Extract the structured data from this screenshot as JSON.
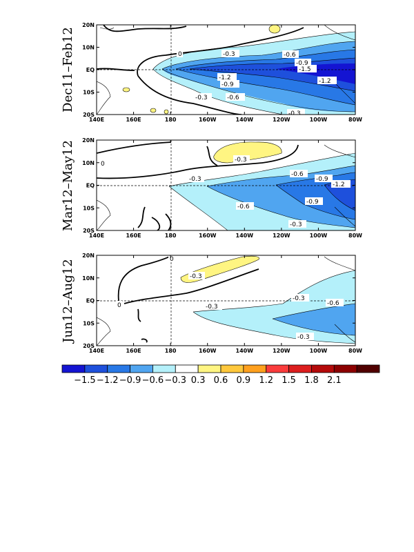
{
  "figure": {
    "x_ticks": [
      "140E",
      "160E",
      "180",
      "160W",
      "140W",
      "120W",
      "100W",
      "80W"
    ],
    "y_ticks": [
      "20N",
      "10N",
      "EQ",
      "10S",
      "20S"
    ],
    "panels": [
      {
        "title": "Dec11–Feb12",
        "contour_labels": [
          "-0.3",
          "-0.6",
          "-0.9",
          "-1.2",
          "-1.5",
          "-1.2",
          "-0.9",
          "-0.6",
          "-0.3",
          "-0.3",
          "0"
        ]
      },
      {
        "title": "Mar12–May12",
        "contour_labels": [
          "-0.3",
          "-0.3",
          "-0.6",
          "-0.9",
          "-1.2",
          "-0.6",
          "-0.9",
          "-0.3",
          "0"
        ]
      },
      {
        "title": "Jun12–Aug12",
        "contour_labels": [
          "0",
          "-0.3",
          "-0.3",
          "-0.3",
          "-0.6",
          "-0.3",
          "0"
        ]
      }
    ],
    "colorbar": {
      "colors": [
        "#1414d2",
        "#1e50dc",
        "#2878e6",
        "#50a5f0",
        "#b4f0fa",
        "#ffffff",
        "#fff582",
        "#ffc83c",
        "#ffa01e",
        "#fa3c3c",
        "#dc1e1e",
        "#b40a0a",
        "#8c0000",
        "#500000"
      ],
      "labels": [
        "−1.5",
        "−1.2",
        "−0.9",
        "−0.6",
        "−0.3",
        "0.3",
        "0.6",
        "0.9",
        "1.2",
        "1.5",
        "1.8",
        "2.1"
      ]
    }
  }
}
